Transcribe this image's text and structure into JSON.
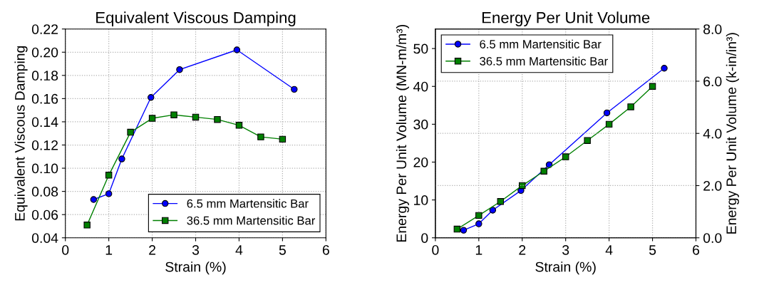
{
  "chart_data": [
    {
      "type": "line",
      "title": "Equivalent Viscous Damping",
      "xlabel": "Strain (%)",
      "ylabel": "Equivalent Viscous Damping",
      "xlim": [
        0,
        6
      ],
      "xticks": [
        0,
        1,
        2,
        3,
        4,
        5,
        6
      ],
      "ylim": [
        0.04,
        0.22
      ],
      "yticks": [
        {
          "value": 0.04,
          "label": "0.04"
        },
        {
          "value": 0.06,
          "label": "0.06"
        },
        {
          "value": 0.08,
          "label": "0.08"
        },
        {
          "value": 0.1,
          "label": "0.10"
        },
        {
          "value": 0.12,
          "label": "0.12"
        },
        {
          "value": 0.14,
          "label": "0.14"
        },
        {
          "value": 0.16,
          "label": "0.16"
        },
        {
          "value": 0.18,
          "label": "0.18"
        },
        {
          "value": 0.2,
          "label": "0.20"
        },
        {
          "value": 0.22,
          "label": "0.22"
        }
      ],
      "grid": true,
      "legend": "bottom right",
      "line_style": "solid",
      "series": [
        {
          "name": "6.5 mm Martensitic Bar",
          "color": "#0000ff",
          "marker": "circle",
          "x": [
            0.65,
            1.0,
            1.3,
            1.97,
            2.63,
            3.95,
            5.27
          ],
          "values": [
            0.073,
            0.078,
            0.108,
            0.161,
            0.185,
            0.202,
            0.168
          ]
        },
        {
          "name": "36.5 mm Martensitic Bar",
          "color": "#008000",
          "marker": "square",
          "x": [
            0.5,
            1.0,
            1.5,
            2.0,
            2.5,
            3.0,
            3.5,
            4.0,
            4.5,
            5.0
          ],
          "values": [
            0.051,
            0.094,
            0.131,
            0.143,
            0.146,
            0.144,
            0.142,
            0.137,
            0.127,
            0.125
          ]
        }
      ]
    },
    {
      "type": "line",
      "title": "Energy Per Unit Volume",
      "xlabel": "Strain (%)",
      "ylabel": "Energy Per Unit Volume (MN-m/m³)",
      "y2label": "Energy Per Unit Volume (k-in/in³)",
      "xlim": [
        0,
        6
      ],
      "xticks": [
        0,
        1,
        2,
        3,
        4,
        5,
        6
      ],
      "ylim": [
        0,
        55.16
      ],
      "yticks": [
        0,
        10,
        20,
        30,
        40,
        50
      ],
      "y2lim": [
        0,
        8
      ],
      "y2ticks": [
        {
          "value": 0,
          "label": "0.0"
        },
        {
          "value": 2,
          "label": "2.0"
        },
        {
          "value": 4,
          "label": "4.0"
        },
        {
          "value": 6,
          "label": "6.0"
        },
        {
          "value": 8,
          "label": "8.0"
        }
      ],
      "grid": true,
      "legend": "top left",
      "line_style": "solid",
      "series": [
        {
          "name": "6.5 mm Martensitic Bar",
          "color": "#0000ff",
          "marker": "circle",
          "x": [
            0.65,
            1.0,
            1.32,
            1.97,
            2.62,
            3.95,
            5.27
          ],
          "values": [
            2.0,
            3.7,
            7.3,
            12.5,
            19.3,
            33.0,
            44.8
          ]
        },
        {
          "name": "36.5 mm Martensitic Bar",
          "color": "#008000",
          "marker": "square",
          "x": [
            0.5,
            1.0,
            1.5,
            2.0,
            2.5,
            3.0,
            3.5,
            4.0,
            4.5,
            5.0
          ],
          "values": [
            2.3,
            5.9,
            9.6,
            13.8,
            17.6,
            21.4,
            25.7,
            30.0,
            34.6,
            40.0
          ]
        }
      ]
    }
  ]
}
